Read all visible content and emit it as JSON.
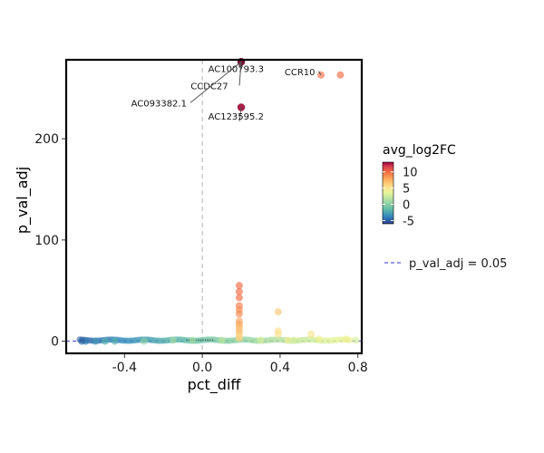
{
  "chart_data": {
    "type": "scatter",
    "xlabel": "pct_diff",
    "ylabel": "p_val_adj",
    "xlim": [
      -0.7,
      0.82
    ],
    "ylim": [
      -12,
      278
    ],
    "x_ticks": [
      {
        "v": -0.4,
        "label": "-0.4"
      },
      {
        "v": 0.0,
        "label": "0.0"
      },
      {
        "v": 0.4,
        "label": "0.4"
      },
      {
        "v": 0.8,
        "label": "0.8"
      }
    ],
    "y_ticks": [
      {
        "v": 0,
        "label": "0"
      },
      {
        "v": 100,
        "label": "100"
      },
      {
        "v": 200,
        "label": "200"
      }
    ],
    "vertical_reference_x": 0.0,
    "threshold_line": {
      "y": 0.05,
      "label": "p_val_adj = 0.05",
      "color": "#5b5bd6"
    },
    "color_scale": {
      "title": "avg_log2FC",
      "min": -6,
      "max": 13,
      "ticks": [
        {
          "v": 10,
          "label": "10"
        },
        {
          "v": 5,
          "label": "5"
        },
        {
          "v": 0,
          "label": "0"
        },
        {
          "v": -5,
          "label": "-5"
        }
      ],
      "palette": "Spectral (reversed)"
    },
    "points": [
      {
        "x": 0.2,
        "y": 276,
        "c": 13
      },
      {
        "x": 0.2,
        "y": 231,
        "c": 12
      },
      {
        "x": 0.61,
        "y": 263,
        "c": 10
      },
      {
        "x": 0.71,
        "y": 263,
        "c": 10
      },
      {
        "x": 0.19,
        "y": 55,
        "c": 10
      },
      {
        "x": 0.19,
        "y": 49,
        "c": 10
      },
      {
        "x": 0.19,
        "y": 43,
        "c": 10
      },
      {
        "x": 0.19,
        "y": 35,
        "c": 9.5
      },
      {
        "x": 0.19,
        "y": 31,
        "c": 9
      },
      {
        "x": 0.19,
        "y": 27,
        "c": 9
      },
      {
        "x": 0.19,
        "y": 20,
        "c": 8
      },
      {
        "x": 0.19,
        "y": 17,
        "c": 8
      },
      {
        "x": 0.19,
        "y": 14,
        "c": 7.5
      },
      {
        "x": 0.19,
        "y": 11,
        "c": 7
      },
      {
        "x": 0.19,
        "y": 8,
        "c": 7
      },
      {
        "x": 0.19,
        "y": 5,
        "c": 6
      },
      {
        "x": 0.19,
        "y": 3,
        "c": 6
      },
      {
        "x": 0.39,
        "y": 29,
        "c": 6.5
      },
      {
        "x": 0.39,
        "y": 10,
        "c": 5.5
      },
      {
        "x": 0.39,
        "y": 7,
        "c": 5
      },
      {
        "x": 0.56,
        "y": 7,
        "c": 5
      },
      {
        "x": 0.6,
        "y": 2,
        "c": 4
      },
      {
        "x": 0.74,
        "y": 2,
        "c": 4
      },
      {
        "x": 0.79,
        "y": 1,
        "c": 3
      },
      {
        "x": 0.47,
        "y": 1,
        "c": 3
      },
      {
        "x": 0.3,
        "y": 1,
        "c": 3
      },
      {
        "x": 0.44,
        "y": 1,
        "c": 4
      },
      {
        "x": 0.1,
        "y": 1,
        "c": 2
      },
      {
        "x": -0.05,
        "y": 1,
        "c": 1
      },
      {
        "x": -0.15,
        "y": 1,
        "c": 1
      },
      {
        "x": -0.3,
        "y": 0,
        "c": 0
      },
      {
        "x": -0.45,
        "y": 0,
        "c": -2
      },
      {
        "x": -0.5,
        "y": 0,
        "c": -2
      },
      {
        "x": -0.55,
        "y": 0,
        "c": -3
      },
      {
        "x": -0.6,
        "y": 0,
        "c": -4
      },
      {
        "x": -0.62,
        "y": 0,
        "c": -5
      }
    ],
    "annotations": [
      {
        "label": "AC100793.3",
        "x": 0.2,
        "y": 276,
        "lx": 0.03,
        "ly": 266,
        "anchor": "start"
      },
      {
        "label": "CCDC27",
        "x": 0.2,
        "y": 276,
        "lx": -0.06,
        "ly": 249,
        "anchor": "start"
      },
      {
        "label": "AC093382.1",
        "x": 0.2,
        "y": 276,
        "lx": -0.08,
        "ly": 232,
        "anchor": "end"
      },
      {
        "label": "AC123595.2",
        "x": 0.2,
        "y": 231,
        "lx": 0.03,
        "ly": 219,
        "anchor": "start"
      },
      {
        "label": "CCR10",
        "x": 0.61,
        "y": 263,
        "lx": 0.58,
        "ly": 263,
        "anchor": "end"
      }
    ]
  }
}
